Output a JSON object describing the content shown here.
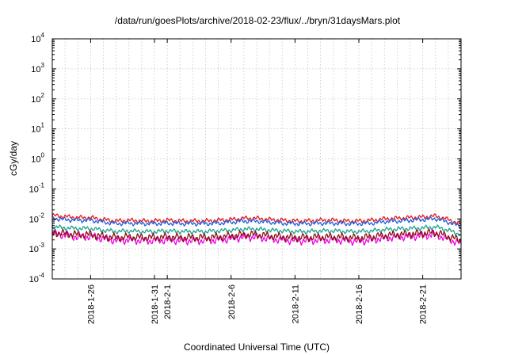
{
  "chart_data": {
    "type": "line",
    "title": "/data/run/goesPlots/archive/2018-02-23/flux/../bryn/31daysMars.plot",
    "xlabel": "Coordinated Universal Time (UTC)",
    "ylabel": "cGy/day",
    "yscale": "log",
    "ylim": [
      0.0001,
      10000
    ],
    "xlim": [
      "2018-01-23",
      "2018-02-24"
    ],
    "grid": true,
    "y_ticks": [
      {
        "base": "10",
        "exp": "-4",
        "value": 0.0001
      },
      {
        "base": "10",
        "exp": "-3",
        "value": 0.001
      },
      {
        "base": "10",
        "exp": "-2",
        "value": 0.01
      },
      {
        "base": "10",
        "exp": "-1",
        "value": 0.1
      },
      {
        "base": "10",
        "exp": "0",
        "value": 1
      },
      {
        "base": "10",
        "exp": "1",
        "value": 10
      },
      {
        "base": "10",
        "exp": "2",
        "value": 100
      },
      {
        "base": "10",
        "exp": "3",
        "value": 1000
      },
      {
        "base": "10",
        "exp": "4",
        "value": 10000
      }
    ],
    "x_ticks": [
      {
        "label": "2018-1-26",
        "date": "2018-01-26"
      },
      {
        "label": "2018-1-31",
        "date": "2018-01-31"
      },
      {
        "label": "2018-2-1",
        "date": "2018-02-01"
      },
      {
        "label": "2018-2-6",
        "date": "2018-02-06"
      },
      {
        "label": "2018-2-11",
        "date": "2018-02-11"
      },
      {
        "label": "2018-2-16",
        "date": "2018-02-16"
      },
      {
        "label": "2018-2-21",
        "date": "2018-02-21"
      }
    ],
    "x": [
      "2018-01-23",
      "2018-01-24",
      "2018-01-25",
      "2018-01-26",
      "2018-01-27",
      "2018-01-28",
      "2018-01-29",
      "2018-01-30",
      "2018-01-31",
      "2018-02-01",
      "2018-02-02",
      "2018-02-03",
      "2018-02-04",
      "2018-02-05",
      "2018-02-06",
      "2018-02-07",
      "2018-02-08",
      "2018-02-09",
      "2018-02-10",
      "2018-02-11",
      "2018-02-12",
      "2018-02-13",
      "2018-02-14",
      "2018-02-15",
      "2018-02-16",
      "2018-02-17",
      "2018-02-18",
      "2018-02-19",
      "2018-02-20",
      "2018-02-21",
      "2018-02-22",
      "2018-02-23",
      "2018-02-24"
    ],
    "series": [
      {
        "color": "#e41a1c",
        "values": [
          0.013,
          0.012,
          0.011,
          0.011,
          0.0095,
          0.0085,
          0.009,
          0.0085,
          0.0085,
          0.009,
          0.0085,
          0.0085,
          0.0085,
          0.009,
          0.0095,
          0.0105,
          0.0105,
          0.0095,
          0.009,
          0.0085,
          0.0085,
          0.009,
          0.009,
          0.0085,
          0.0085,
          0.009,
          0.01,
          0.0105,
          0.011,
          0.0115,
          0.0125,
          0.0095,
          0.0065
        ]
      },
      {
        "color": "#1f5fe0",
        "values": [
          0.0105,
          0.0095,
          0.009,
          0.009,
          0.0078,
          0.007,
          0.0072,
          0.007,
          0.007,
          0.0072,
          0.007,
          0.007,
          0.007,
          0.0072,
          0.0078,
          0.0085,
          0.0085,
          0.0078,
          0.0072,
          0.007,
          0.007,
          0.0072,
          0.0072,
          0.007,
          0.007,
          0.0072,
          0.0082,
          0.0085,
          0.009,
          0.0095,
          0.0102,
          0.0078,
          0.0055
        ]
      },
      {
        "color": "#1aa38c",
        "values": [
          0.0055,
          0.005,
          0.0048,
          0.0048,
          0.0042,
          0.0038,
          0.004,
          0.0038,
          0.0038,
          0.004,
          0.0038,
          0.0038,
          0.0038,
          0.004,
          0.0042,
          0.0046,
          0.0046,
          0.0042,
          0.004,
          0.0038,
          0.0038,
          0.004,
          0.004,
          0.0038,
          0.0038,
          0.004,
          0.0044,
          0.0046,
          0.0048,
          0.005,
          0.0054,
          0.0042,
          0.003
        ]
      },
      {
        "color": "#f000e0",
        "values": [
          0.0032,
          0.0029,
          0.0025,
          0.0026,
          0.0022,
          0.0019,
          0.002,
          0.0019,
          0.0019,
          0.002,
          0.0019,
          0.0019,
          0.0019,
          0.002,
          0.0022,
          0.0025,
          0.0025,
          0.0022,
          0.002,
          0.0019,
          0.0019,
          0.002,
          0.002,
          0.0019,
          0.0018,
          0.002,
          0.0023,
          0.0025,
          0.0026,
          0.0028,
          0.003,
          0.0021,
          0.0015
        ]
      },
      {
        "color": "#8a1010",
        "values": [
          0.0036,
          0.0032,
          0.003,
          0.003,
          0.0026,
          0.0024,
          0.0025,
          0.0024,
          0.0024,
          0.0025,
          0.0024,
          0.0024,
          0.0024,
          0.0025,
          0.0027,
          0.003,
          0.003,
          0.0027,
          0.0025,
          0.0024,
          0.0024,
          0.0025,
          0.0025,
          0.0024,
          0.0023,
          0.0025,
          0.0028,
          0.003,
          0.0031,
          0.0033,
          0.0035,
          0.0026,
          0.0019
        ]
      }
    ]
  }
}
